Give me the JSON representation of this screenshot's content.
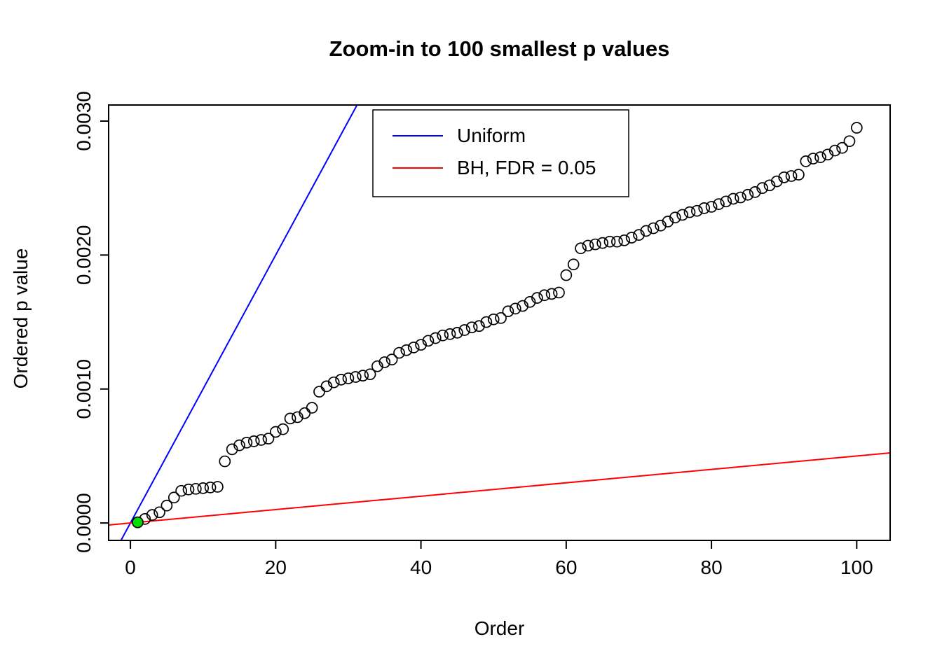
{
  "chart_data": {
    "type": "scatter",
    "title": "Zoom-in to 100 smallest p values",
    "xlabel": "Order",
    "ylabel": "Ordered p value",
    "grid": false,
    "xlim": [
      -3,
      104.6
    ],
    "ylim": [
      -0.00013,
      0.00312
    ],
    "x_ticks": {
      "values": [
        0,
        20,
        40,
        60,
        80,
        100
      ],
      "labels": [
        "0",
        "20",
        "40",
        "60",
        "80",
        "100"
      ]
    },
    "y_ticks": {
      "values": [
        0,
        0.001,
        0.002,
        0.003
      ],
      "labels": [
        "0.0000",
        "0.0010",
        "0.0020",
        "0.0030"
      ]
    },
    "series": [
      {
        "name": "ordered_p_values",
        "marker": "open-circle",
        "color": "#000000",
        "x": [
          1,
          2,
          3,
          4,
          5,
          6,
          7,
          8,
          9,
          10,
          11,
          12,
          13,
          14,
          15,
          16,
          17,
          18,
          19,
          20,
          21,
          22,
          23,
          24,
          25,
          26,
          27,
          28,
          29,
          30,
          31,
          32,
          33,
          34,
          35,
          36,
          37,
          38,
          39,
          40,
          41,
          42,
          43,
          44,
          45,
          46,
          47,
          48,
          49,
          50,
          51,
          52,
          53,
          54,
          55,
          56,
          57,
          58,
          59,
          60,
          61,
          62,
          63,
          64,
          65,
          66,
          67,
          68,
          69,
          70,
          71,
          72,
          73,
          74,
          75,
          76,
          77,
          78,
          79,
          80,
          81,
          82,
          83,
          84,
          85,
          86,
          87,
          88,
          89,
          90,
          91,
          92,
          93,
          94,
          95,
          96,
          97,
          98,
          99,
          100
        ],
        "y": [
          5e-06,
          3e-05,
          6e-05,
          8e-05,
          0.00013,
          0.00019,
          0.00024,
          0.00025,
          0.000255,
          0.00026,
          0.000265,
          0.00027,
          0.00046,
          0.00055,
          0.00058,
          0.0006,
          0.00061,
          0.00062,
          0.00063,
          0.00068,
          0.0007,
          0.00078,
          0.00079,
          0.00082,
          0.00086,
          0.00098,
          0.00102,
          0.00105,
          0.00107,
          0.00108,
          0.00109,
          0.0011,
          0.00111,
          0.00117,
          0.0012,
          0.00122,
          0.00127,
          0.00129,
          0.00131,
          0.00133,
          0.00136,
          0.00138,
          0.0014,
          0.00141,
          0.00142,
          0.00144,
          0.00146,
          0.00147,
          0.0015,
          0.00152,
          0.00153,
          0.00158,
          0.0016,
          0.00162,
          0.00165,
          0.00168,
          0.0017,
          0.00171,
          0.00172,
          0.00185,
          0.00193,
          0.00205,
          0.00207,
          0.00208,
          0.00209,
          0.0021,
          0.0021,
          0.00211,
          0.00213,
          0.00215,
          0.00218,
          0.0022,
          0.00222,
          0.00225,
          0.00228,
          0.0023,
          0.00232,
          0.00233,
          0.00235,
          0.00236,
          0.00238,
          0.0024,
          0.00242,
          0.00243,
          0.00245,
          0.00247,
          0.0025,
          0.00252,
          0.00255,
          0.00258,
          0.00259,
          0.0026,
          0.0027,
          0.00272,
          0.00273,
          0.00275,
          0.00278,
          0.0028,
          0.00285,
          0.00295
        ]
      }
    ],
    "highlight_point": {
      "name": "smallest_p_value",
      "x": 1,
      "y": 5e-06,
      "color": "#00dd00"
    },
    "lines": [
      {
        "name": "Uniform",
        "color": "#0000ff",
        "slope": 0.0001,
        "intercept": 0
      },
      {
        "name": "BH, FDR = 0.05",
        "color": "#ff0000",
        "slope": 5e-06,
        "intercept": 0
      }
    ],
    "legend": {
      "position": "top-center-inside",
      "entries": [
        {
          "label": "Uniform",
          "color": "#0000ff"
        },
        {
          "label": "BH, FDR = 0.05",
          "color": "#ff0000"
        }
      ]
    }
  }
}
